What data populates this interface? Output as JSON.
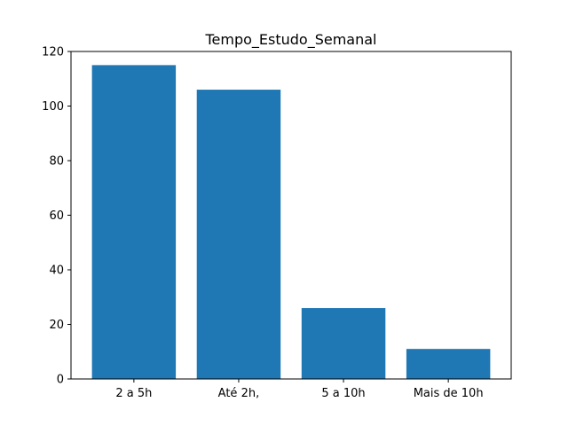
{
  "chart_data": {
    "type": "bar",
    "title": "Tempo_Estudo_Semanal",
    "xlabel": "",
    "ylabel": "",
    "categories": [
      "2 a 5h",
      "Até 2h,",
      "5 a 10h",
      "Mais de 10h"
    ],
    "values": [
      115,
      106,
      26,
      11
    ],
    "ylim": [
      0,
      120
    ],
    "yticks": [
      0,
      20,
      40,
      60,
      80,
      100,
      120
    ],
    "grid": false,
    "legend": "none",
    "bar_color": "#1f77b4"
  }
}
